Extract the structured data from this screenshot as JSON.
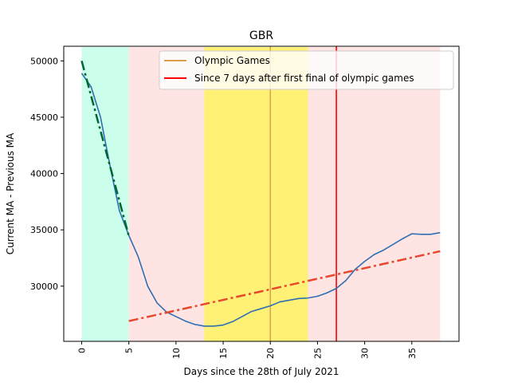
{
  "chart_data": {
    "type": "line",
    "title": "GBR",
    "xlabel": "Days since the 28th of July 2021",
    "ylabel": "Current MA - Previous MA",
    "xlim": [
      -1.9,
      40.0
    ],
    "ylim": [
      25100,
      51300
    ],
    "xticks": [
      0,
      5,
      10,
      15,
      20,
      25,
      30,
      35
    ],
    "xtick_labels": [
      "0",
      "5",
      "10",
      "15",
      "20",
      "25",
      "30",
      "35"
    ],
    "yticks": [
      30000,
      35000,
      40000,
      45000,
      50000
    ],
    "ytick_labels": [
      "30000",
      "35000",
      "40000",
      "45000",
      "50000"
    ],
    "grid": false,
    "legend": {
      "placement": "top-right",
      "entries": [
        {
          "label": "Olympic Games",
          "color": "#DDA050"
        },
        {
          "label": "Since 7 days after first final of olympic games",
          "color": "#FF0000"
        }
      ]
    },
    "shaded_regions": [
      {
        "x0": 0,
        "x1": 5,
        "color": "#CCFFEB"
      },
      {
        "x0": 5,
        "x1": 13,
        "color": "#FFE4E4"
      },
      {
        "x0": 13,
        "x1": 24,
        "color": "#FFF176"
      },
      {
        "x0": 24,
        "x1": 38,
        "color": "#FFE4E4"
      }
    ],
    "vertical_lines": [
      {
        "x": 20,
        "color": "#DDA050",
        "width": 1.5
      },
      {
        "x": 27,
        "color": "#FF0000",
        "width": 1.6
      }
    ],
    "series": [
      {
        "color": "#2F6FB1",
        "style": "solid",
        "x": [
          0,
          1,
          2,
          3,
          4,
          5,
          6,
          7,
          8,
          9,
          10,
          11,
          12,
          13,
          14,
          15,
          16,
          17,
          18,
          19,
          20,
          21,
          22,
          23,
          24,
          25,
          26,
          27,
          28,
          29,
          30,
          31,
          32,
          33,
          34,
          35,
          36,
          37,
          38
        ],
        "values": [
          48900,
          47700,
          45000,
          40700,
          36700,
          34500,
          32600,
          30000,
          28500,
          27700,
          27300,
          26900,
          26600,
          26450,
          26450,
          26550,
          26850,
          27300,
          27750,
          28000,
          28250,
          28600,
          28750,
          28900,
          28950,
          29100,
          29400,
          29800,
          30500,
          31500,
          32200,
          32800,
          33200,
          33700,
          34200,
          34650,
          34600,
          34600,
          34750
        ]
      },
      {
        "color": "#006633",
        "style": "dashdot",
        "x": [
          0,
          5
        ],
        "values": [
          50000,
          34450
        ]
      },
      {
        "color": "#E8472E",
        "style": "dashdot",
        "x": [
          5,
          38
        ],
        "values": [
          26900,
          33100
        ]
      }
    ]
  }
}
